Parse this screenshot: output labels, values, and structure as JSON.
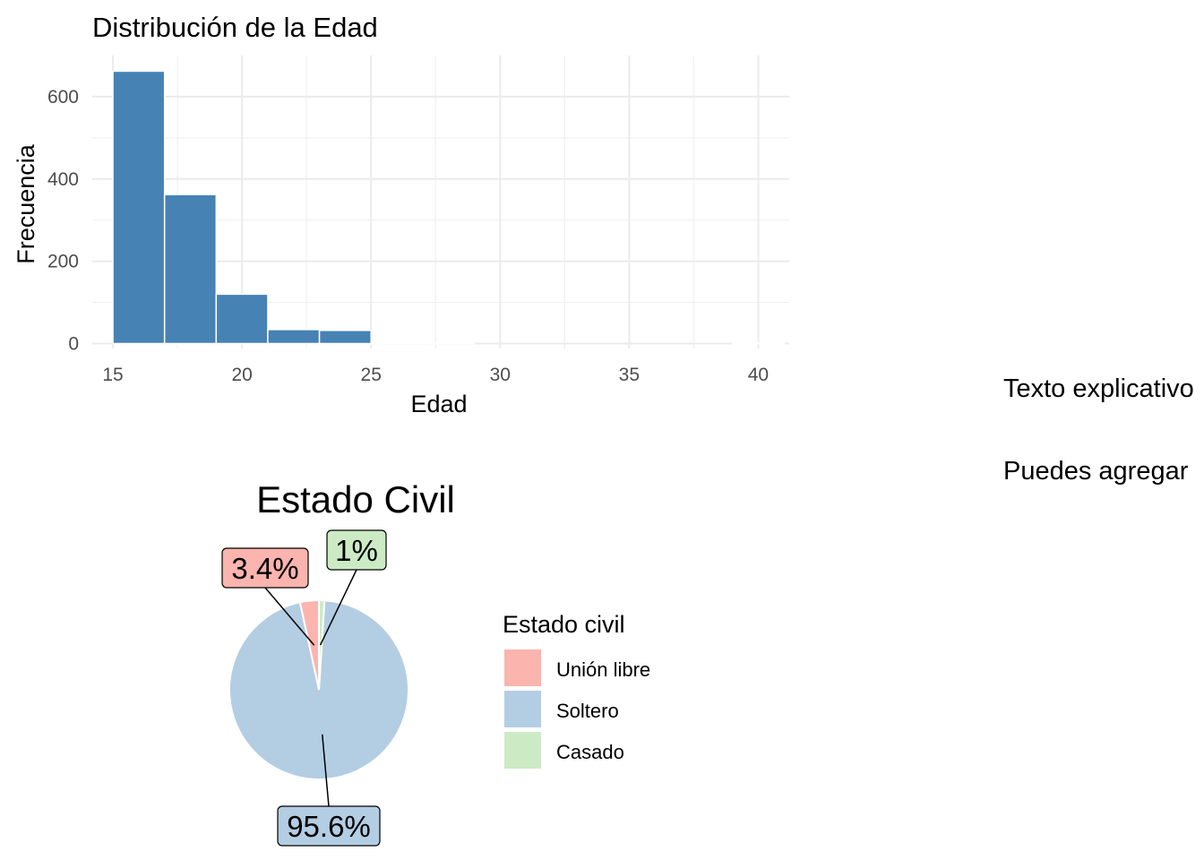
{
  "histogram": {
    "chart_data": {
      "type": "bar",
      "title": "Distribución de la Edad",
      "xlabel": "Edad",
      "ylabel": "Frecuencia",
      "bin_width": 2,
      "bins": [
        {
          "x0": 15,
          "x1": 17,
          "value": 662
        },
        {
          "x0": 17,
          "x1": 19,
          "value": 362
        },
        {
          "x0": 19,
          "x1": 21,
          "value": 120
        },
        {
          "x0": 21,
          "x1": 23,
          "value": 34
        },
        {
          "x0": 23,
          "x1": 25,
          "value": 32
        },
        {
          "x0": 25,
          "x1": 27,
          "value": 3
        },
        {
          "x0": 27,
          "x1": 29,
          "value": 2
        },
        {
          "x0": 29,
          "x1": 31,
          "value": 0
        },
        {
          "x0": 31,
          "x1": 33,
          "value": 0
        },
        {
          "x0": 33,
          "x1": 35,
          "value": 0
        },
        {
          "x0": 35,
          "x1": 37,
          "value": 0
        },
        {
          "x0": 37,
          "x1": 39,
          "value": 0
        },
        {
          "x0": 39,
          "x1": 41,
          "value": 1
        }
      ],
      "xticks": [
        15,
        20,
        25,
        30,
        35,
        40
      ],
      "yticks": [
        0,
        200,
        400,
        600
      ],
      "xlim": [
        14.2,
        41.2
      ],
      "ylim": [
        -12,
        700
      ],
      "grid": true,
      "bar_color": "#4682B4"
    }
  },
  "pie": {
    "chart_data": {
      "type": "pie",
      "title": "Estado Civil",
      "legend_title": "Estado civil",
      "legend_placement": "right",
      "slices": [
        {
          "name": "Unión libre",
          "value": 3.4,
          "label": "3.4%",
          "color": "#FBB4AE"
        },
        {
          "name": "Soltero",
          "value": 95.6,
          "label": "95.6%",
          "color": "#B3CDE3"
        },
        {
          "name": "Casado",
          "value": 1.0,
          "label": "1%",
          "color": "#CCEBC5"
        }
      ]
    }
  },
  "side_text": {
    "line1": "Texto explicativo",
    "line2": "Puedes agregar"
  }
}
